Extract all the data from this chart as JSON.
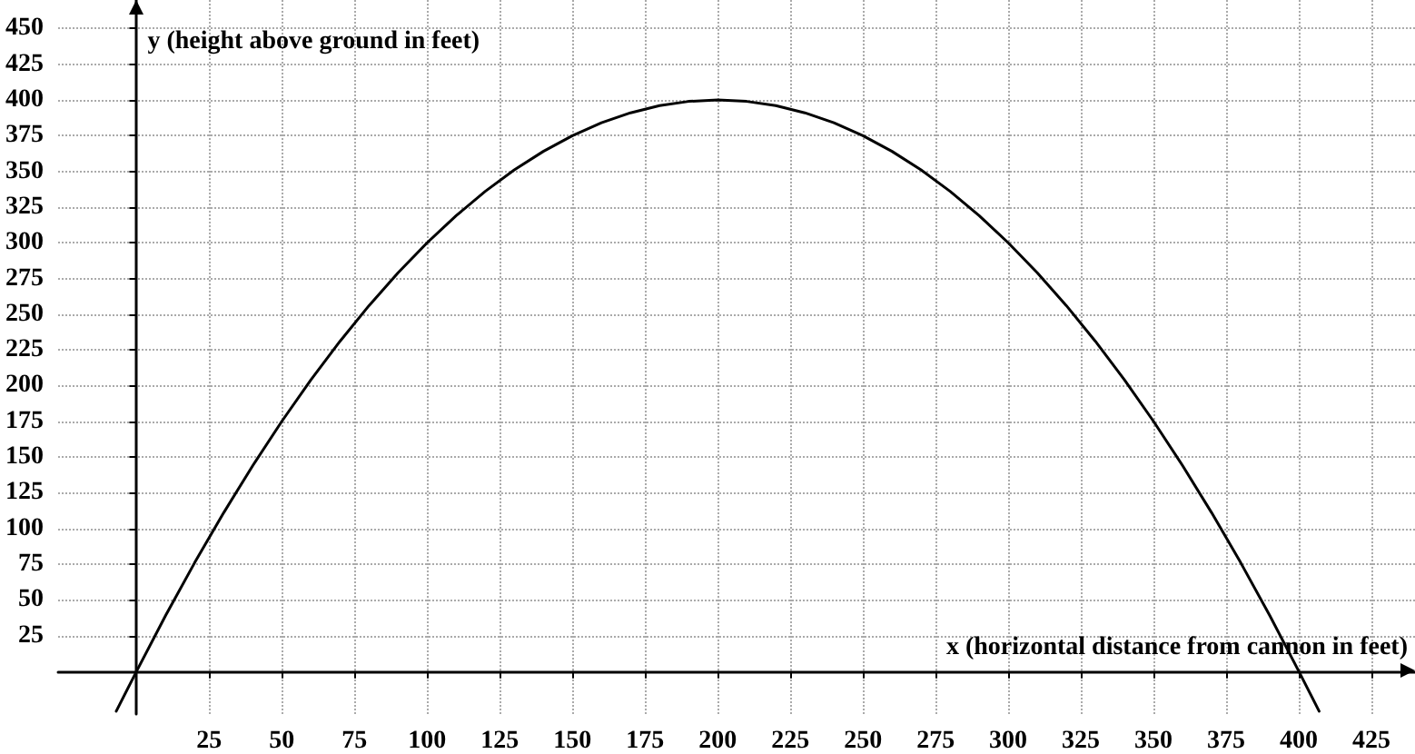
{
  "chart_data": {
    "type": "line",
    "xlabel": "x (horizontal distance from cannon in feet)",
    "ylabel": "y (height above ground in feet)",
    "x": [
      -7,
      0,
      10,
      20,
      30,
      40,
      50,
      60,
      70,
      80,
      90,
      100,
      110,
      120,
      130,
      140,
      150,
      160,
      170,
      180,
      190,
      200,
      210,
      220,
      230,
      240,
      250,
      260,
      270,
      280,
      290,
      300,
      310,
      320,
      330,
      340,
      350,
      360,
      370,
      380,
      390,
      400,
      407
    ],
    "series": [
      {
        "color": "#000000",
        "values": [
          -28,
          0,
          39,
          76,
          111,
          144,
          175,
          204,
          231,
          256,
          279,
          300,
          319,
          336,
          351,
          364,
          375,
          384,
          391,
          396,
          399,
          400,
          399,
          396,
          391,
          384,
          375,
          364,
          351,
          336,
          319,
          300,
          279,
          256,
          231,
          204,
          175,
          144,
          111,
          76,
          39,
          0,
          -28
        ]
      }
    ],
    "xlim": [
      -27,
      440
    ],
    "ylim": [
      -30,
      470
    ],
    "xticks": [
      25,
      50,
      75,
      100,
      125,
      150,
      175,
      200,
      225,
      250,
      275,
      300,
      325,
      350,
      375,
      400,
      425
    ],
    "yticks": [
      25,
      50,
      75,
      100,
      125,
      150,
      175,
      200,
      225,
      250,
      275,
      300,
      325,
      350,
      375,
      400,
      425,
      450
    ],
    "grid": true,
    "marker": "none",
    "line_style": "solid"
  }
}
